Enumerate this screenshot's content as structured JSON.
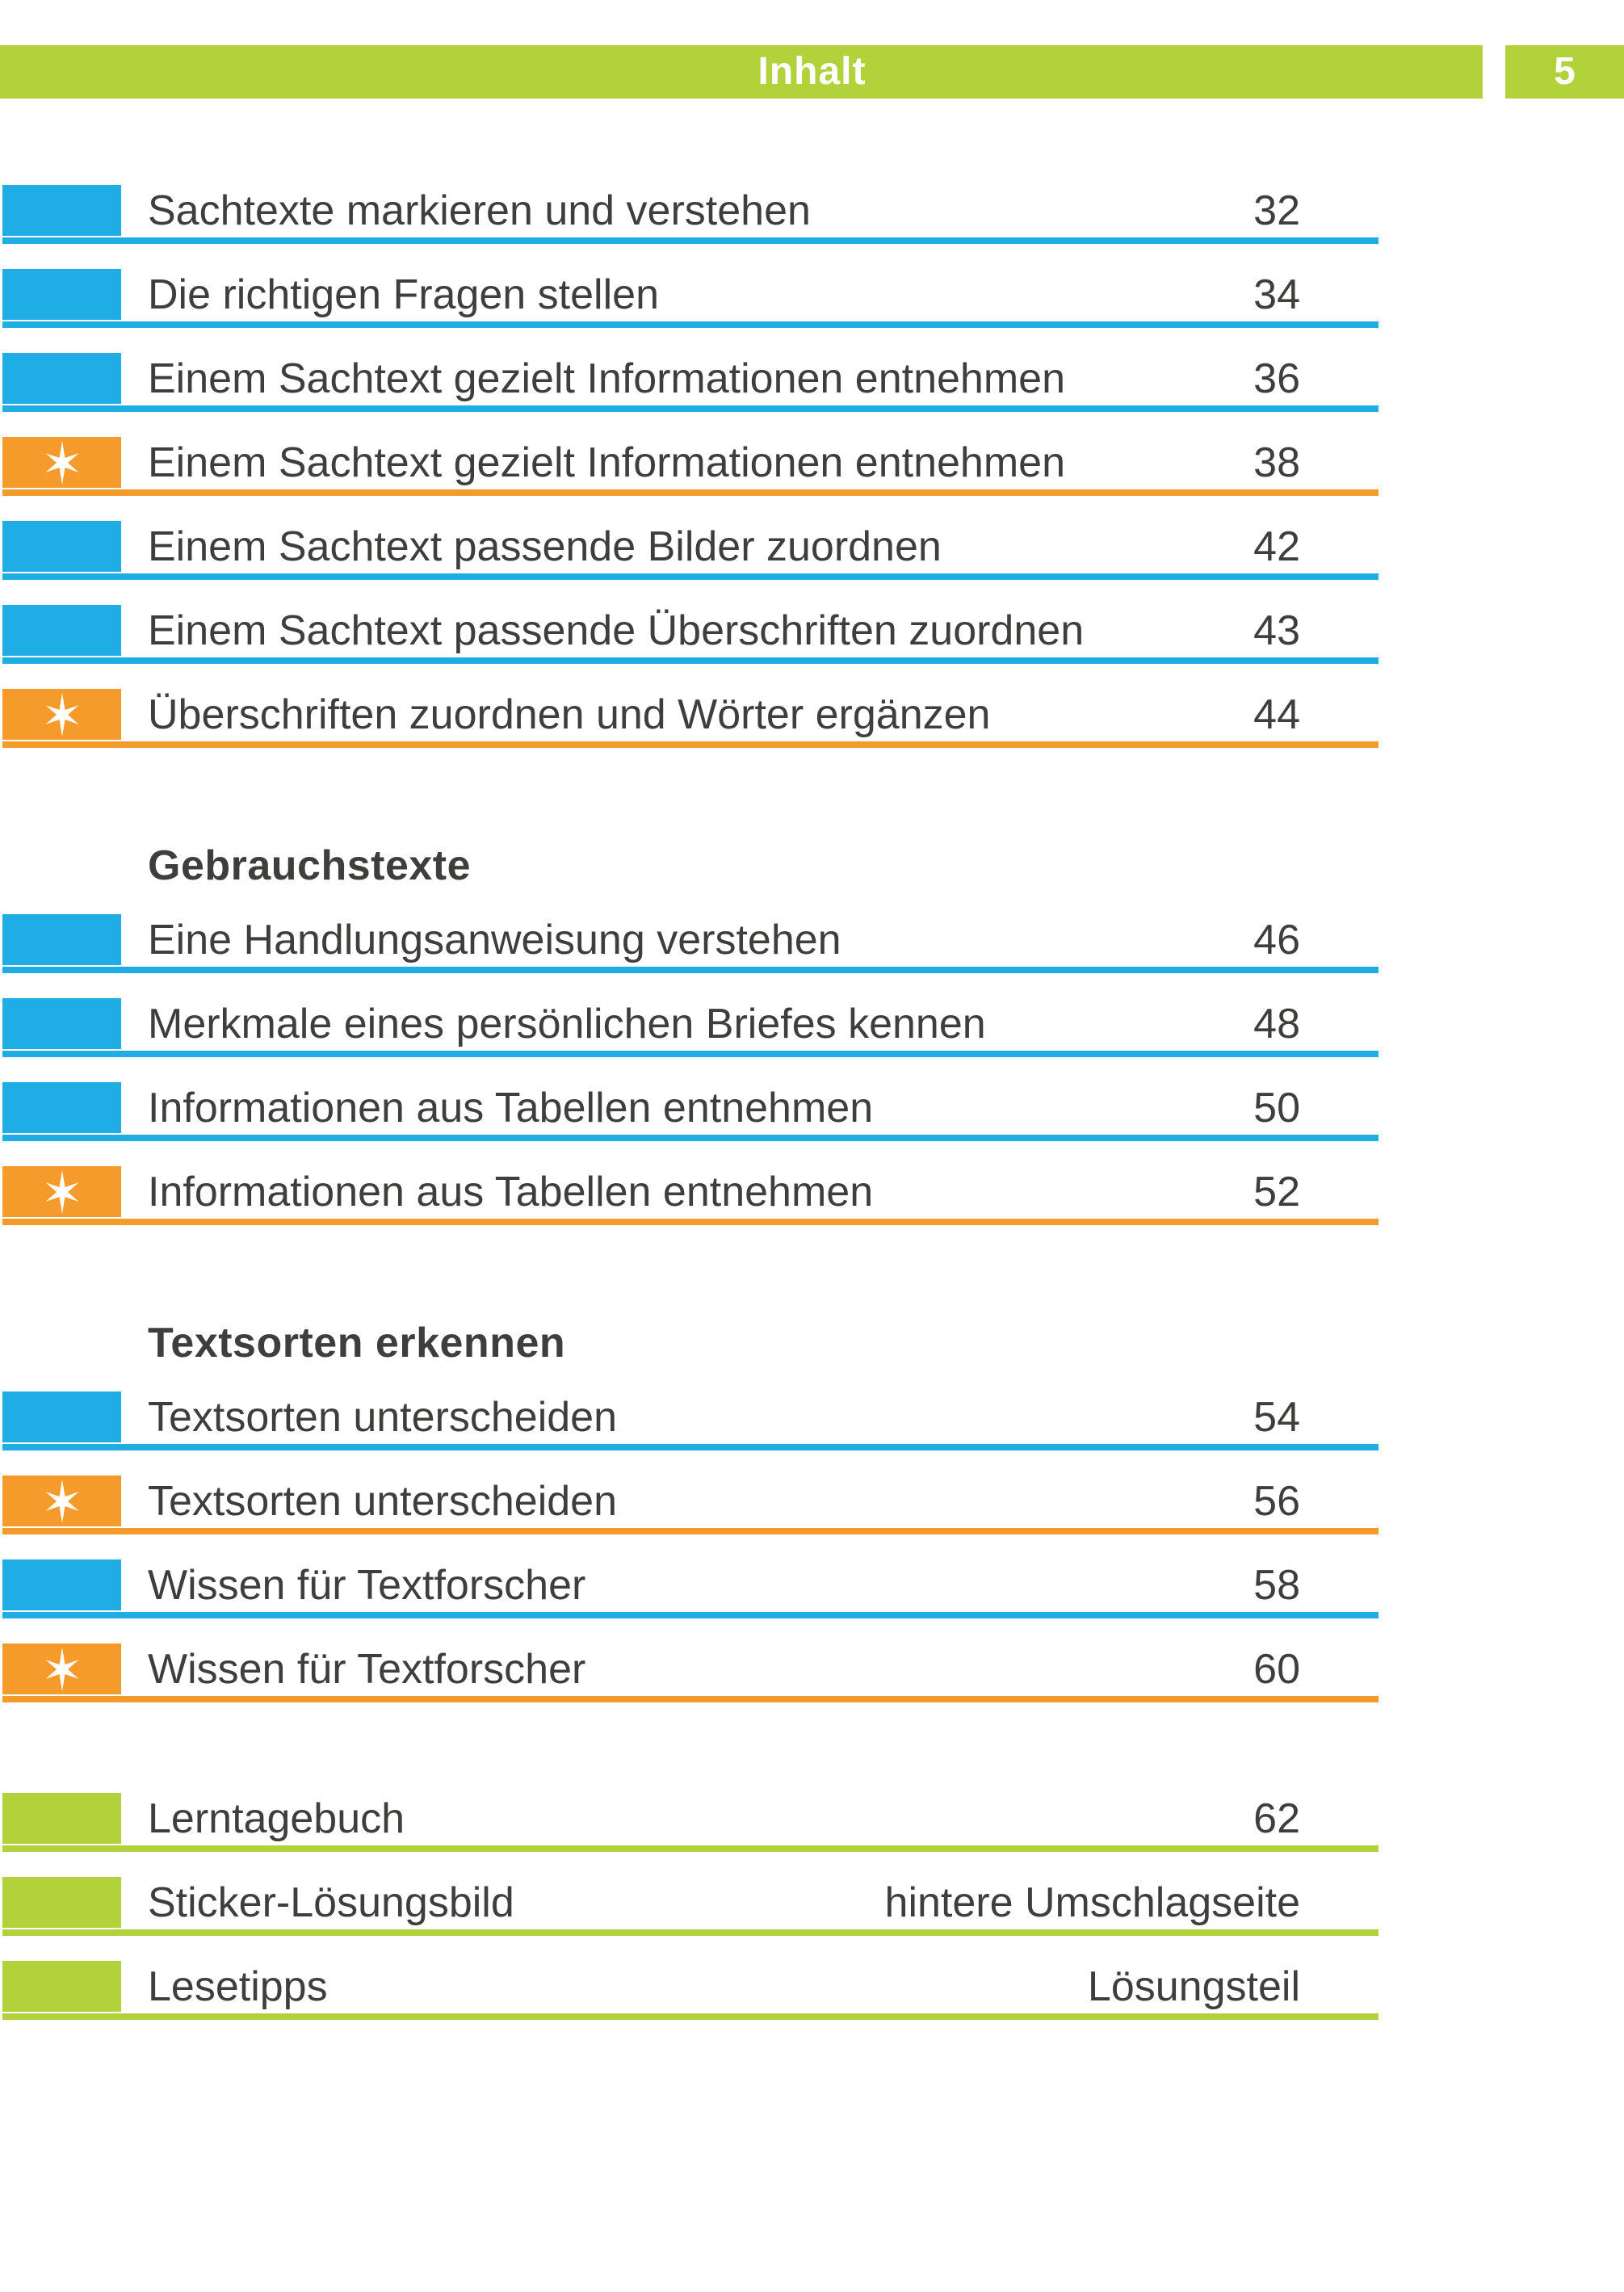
{
  "header": {
    "title": "Inhalt",
    "page_number": "5"
  },
  "colors": {
    "green": "#B2D23C",
    "blue": "#1EADE4",
    "orange": "#F59B2B",
    "text": "#3E3E3D",
    "star": "#FFFFFF"
  },
  "sections": [
    {
      "heading": "",
      "rows": [
        {
          "type": "blue",
          "star": false,
          "title": "Sachtexte markieren und verstehen",
          "page": "32"
        },
        {
          "type": "blue",
          "star": false,
          "title": "Die richtigen Fragen stellen",
          "page": "34"
        },
        {
          "type": "blue",
          "star": false,
          "title": "Einem Sachtext gezielt Informationen entnehmen",
          "page": "36"
        },
        {
          "type": "orange",
          "star": true,
          "title": "Einem Sachtext gezielt Informationen entnehmen",
          "page": "38"
        },
        {
          "type": "blue",
          "star": false,
          "title": "Einem Sachtext passende Bilder zuordnen",
          "page": "42"
        },
        {
          "type": "blue",
          "star": false,
          "title": "Einem Sachtext passende Überschriften zuordnen",
          "page": "43"
        },
        {
          "type": "orange",
          "star": true,
          "title": "Überschriften zuordnen und Wörter ergänzen",
          "page": "44"
        }
      ]
    },
    {
      "heading": "Gebrauchstexte",
      "rows": [
        {
          "type": "blue",
          "star": false,
          "title": "Eine Handlungsanweisung verstehen",
          "page": "46"
        },
        {
          "type": "blue",
          "star": false,
          "title": "Merkmale eines persönlichen Briefes kennen",
          "page": "48"
        },
        {
          "type": "blue",
          "star": false,
          "title": "Informationen aus Tabellen entnehmen",
          "page": "50"
        },
        {
          "type": "orange",
          "star": true,
          "title": "Informationen aus Tabellen entnehmen",
          "page": "52"
        }
      ]
    },
    {
      "heading": "Textsorten erkennen",
      "rows": [
        {
          "type": "blue",
          "star": false,
          "title": "Textsorten unterscheiden",
          "page": "54"
        },
        {
          "type": "orange",
          "star": true,
          "title": "Textsorten unterscheiden",
          "page": "56"
        },
        {
          "type": "blue",
          "star": false,
          "title": "Wissen für Textforscher",
          "page": "58"
        },
        {
          "type": "orange",
          "star": true,
          "title": "Wissen für Textforscher",
          "page": "60"
        }
      ]
    },
    {
      "heading": "",
      "rows": [
        {
          "type": "green",
          "star": false,
          "title": "Lerntagebuch",
          "page": "62"
        },
        {
          "type": "green",
          "star": false,
          "title": "Sticker-Lösungsbild",
          "page": "hintere Umschlagseite"
        },
        {
          "type": "green",
          "star": false,
          "title": "Lesetipps",
          "page": "Lösungsteil"
        }
      ]
    }
  ]
}
